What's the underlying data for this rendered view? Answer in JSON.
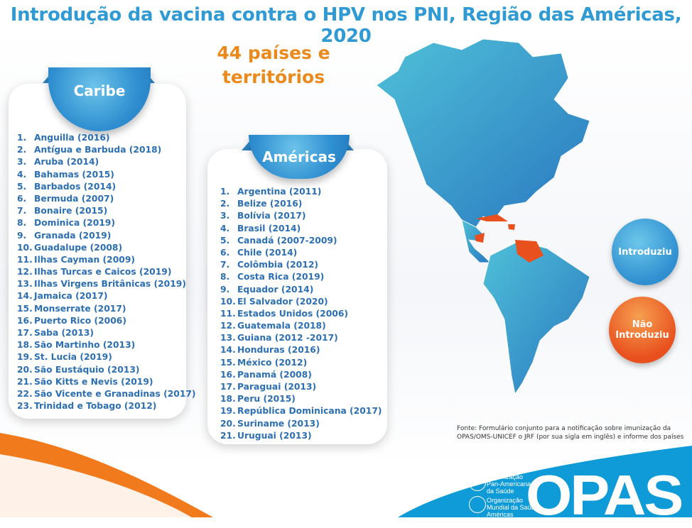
{
  "title": "Introdução da vacina contra o HPV nos PNI, Região das Américas, 2020",
  "count_line1": "44 países e",
  "count_line2": "territórios",
  "caribe": {
    "title": "Caribe",
    "items": [
      "Anguilla (2016)",
      "Antígua e Barbuda (2018)",
      "Aruba (2014)",
      "Bahamas (2015)",
      "Barbados (2014)",
      "Bermuda (2007)",
      "Bonaire (2015)",
      "Dominica (2019)",
      "Granada (2019)",
      "Guadalupe (2008)",
      "Ilhas Cayman (2009)",
      "Ilhas Turcas e Caicos (2019)",
      "Ilhas Virgens Britânicas (2019)",
      "Jamaica (2017)",
      "Monserrate (2017)",
      "Puerto Rico (2006)",
      "Saba (2013)",
      "São Martinho (2013)",
      "St. Lucia (2019)",
      "São Eustáquio (2013)",
      "São Kitts e Nevis (2019)",
      "São Vicente e Granadinas (2017)",
      "Trinidad e Tobago (2012)"
    ]
  },
  "americas": {
    "title": "Américas",
    "items": [
      "Argentina (2011)",
      "Belize (2016)",
      "Bolívia (2017)",
      "Brasil (2014)",
      "Canadá (2007-2009)",
      "Chile (2014)",
      "Colômbia (2012)",
      "Costa Rica (2019)",
      "Equador (2014)",
      "El Salvador (2020)",
      "Estados Unidos (2006)",
      "Guatemala (2018)",
      "Guiana (2012 -2017)",
      "Honduras (2016)",
      "México (2012)",
      "Panamá (2008)",
      "Paraguai (2013)",
      "Peru (2015)",
      "República Dominicana (2017)",
      "Suriname (2013)",
      "Uruguai (2013)"
    ]
  },
  "legend": {
    "introduced": "Introduziu",
    "not_introduced_1": "Não",
    "not_introduced_2": "Introduziu"
  },
  "colors": {
    "introduced": "#2f8fd0",
    "not_introduced": "#e8501e",
    "title": "#2f9ad3",
    "count": "#ea8a1c"
  },
  "source_line1": "Fonte: Formulário conjunto para a notificação  sobre imunização da",
  "source_line2": "OPAS/OMS-UNICEF o JRF (por sua sigla em inglês) e informe dos países",
  "footer": {
    "paho_1": "Organização",
    "paho_2": "Pan-Americana",
    "paho_3": "da Saúde",
    "who_1": "Organização",
    "who_2": "Mundial da Saúde",
    "who_3": "Américas",
    "logo_text": "OPAS"
  }
}
